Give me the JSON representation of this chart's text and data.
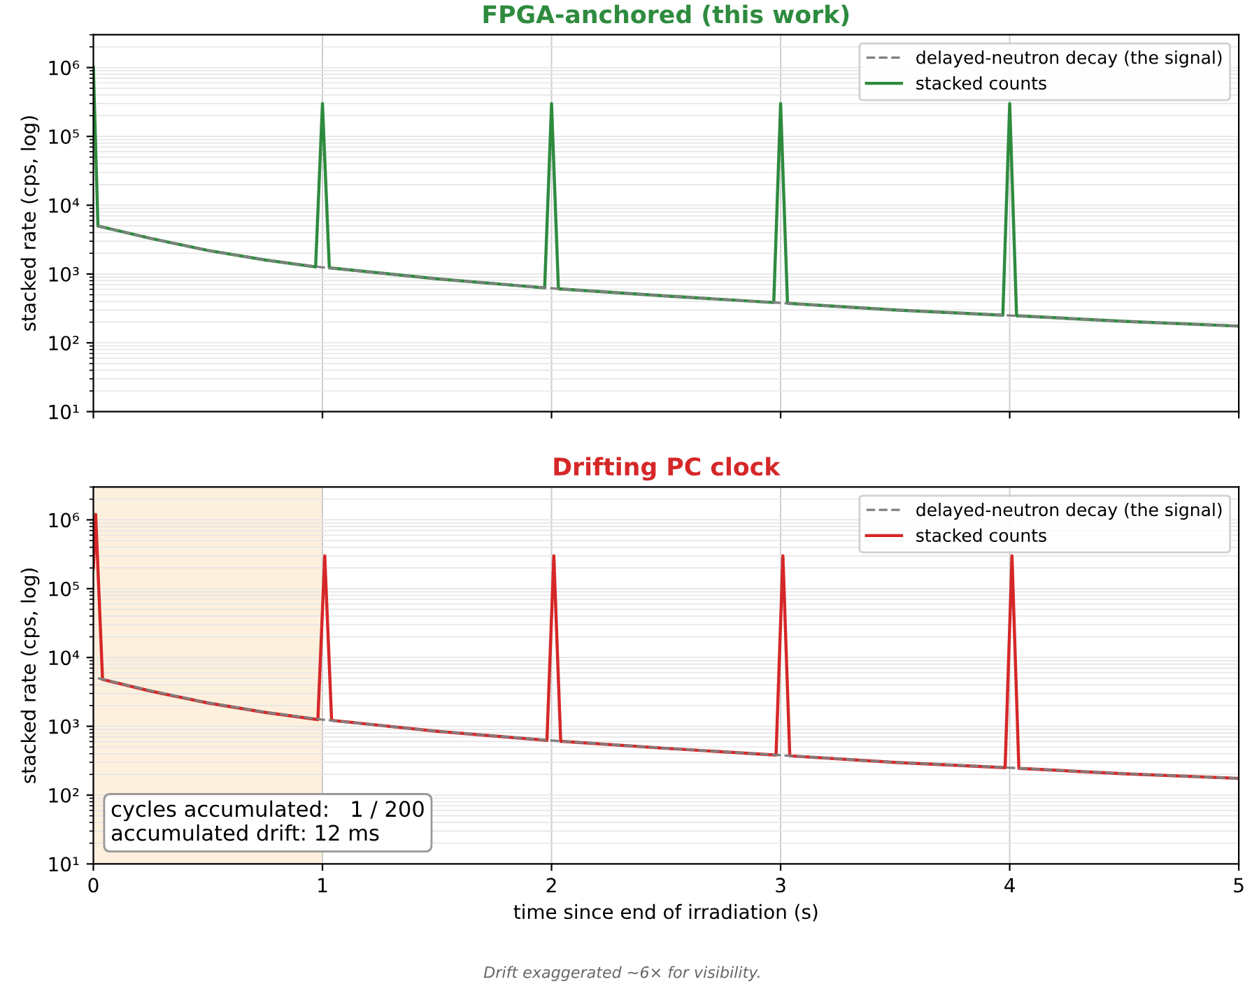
{
  "chart_data": [
    {
      "type": "line",
      "title": "FPGA-anchored (this work)",
      "ylabel": "stacked rate (cps, log)",
      "log": "y",
      "xlim": [
        0,
        5
      ],
      "xticks": [
        0,
        1,
        2,
        3,
        4,
        5
      ],
      "ylim": [
        10,
        3000000
      ],
      "yticks": [
        {
          "value": 10,
          "label": "10¹"
        },
        {
          "value": 100,
          "label": "10²"
        },
        {
          "value": 1000,
          "label": "10³"
        },
        {
          "value": 10000,
          "label": "10⁴"
        },
        {
          "value": 100000,
          "label": "10⁵"
        },
        {
          "value": 1000000,
          "label": "10⁶"
        }
      ],
      "tick_labels": "y",
      "grid": true,
      "legend": "top right",
      "line_style": "solid",
      "marker": "none",
      "series": [
        {
          "name": "delayed-neutron decay (the signal)",
          "color": "#808080",
          "line_style": "dashed",
          "x": [
            0.02,
            0.25,
            0.5,
            0.75,
            1,
            1.5,
            2,
            2.5,
            3,
            3.5,
            4,
            4.5,
            5
          ],
          "values": [
            5000,
            3300,
            2200,
            1600,
            1250,
            850,
            620,
            480,
            380,
            300,
            250,
            205,
            175
          ]
        },
        {
          "name": "stacked counts",
          "color": "#2e8b3e",
          "x": [
            0,
            0.02,
            0.25,
            0.5,
            0.75,
            0.97,
            1.0,
            1.03,
            1.5,
            1.97,
            2.0,
            2.03,
            2.5,
            2.97,
            3.0,
            3.03,
            3.5,
            3.97,
            4.0,
            4.03,
            4.5,
            5
          ],
          "values": [
            1000000,
            5000,
            3300,
            2200,
            1600,
            1270,
            300000,
            1230,
            850,
            630,
            300000,
            610,
            480,
            385,
            300000,
            375,
            300,
            252,
            300000,
            248,
            205,
            175
          ]
        }
      ]
    },
    {
      "type": "line",
      "title": "Drifting PC clock",
      "xlabel": "time since end of irradiation (s)",
      "ylabel": "stacked rate (cps, log)",
      "log": "y",
      "xlim": [
        0,
        5
      ],
      "xticks": [
        0,
        1,
        2,
        3,
        4,
        5
      ],
      "ylim": [
        10,
        3000000
      ],
      "yticks": [
        {
          "value": 10,
          "label": "10¹"
        },
        {
          "value": 100,
          "label": "10²"
        },
        {
          "value": 1000,
          "label": "10³"
        },
        {
          "value": 10000,
          "label": "10⁴"
        },
        {
          "value": 100000,
          "label": "10⁵"
        },
        {
          "value": 1000000,
          "label": "10⁶"
        }
      ],
      "grid": true,
      "legend": "top right",
      "line_style": "solid",
      "marker": "none",
      "bands": [
        {
          "axis": "x",
          "from": 0,
          "to": 1,
          "color": "#fdf0dc"
        }
      ],
      "annotations": [
        "cycles accumulated:   1 / 200\naccumulated drift: 12 ms",
        "Drift exaggerated ~6× for visibility."
      ],
      "series": [
        {
          "name": "delayed-neutron decay (the signal)",
          "color": "#808080",
          "line_style": "dashed",
          "x": [
            0.02,
            0.25,
            0.5,
            0.75,
            1,
            1.5,
            2,
            2.5,
            3,
            3.5,
            4,
            4.5,
            5
          ],
          "values": [
            5000,
            3300,
            2200,
            1600,
            1250,
            850,
            620,
            480,
            380,
            300,
            250,
            205,
            175
          ]
        },
        {
          "name": "stacked counts",
          "color": "#d62728",
          "x": [
            0,
            0.01,
            0.04,
            0.25,
            0.5,
            0.75,
            0.98,
            1.01,
            1.04,
            1.5,
            1.98,
            2.01,
            2.04,
            2.5,
            2.98,
            3.01,
            3.04,
            3.5,
            3.98,
            4.01,
            4.04,
            4.5,
            5
          ],
          "values": [
            200000,
            1200000,
            4800,
            3250,
            2180,
            1590,
            1250,
            300000,
            1220,
            845,
            625,
            300000,
            605,
            478,
            382,
            300000,
            372,
            298,
            250,
            300000,
            245,
            204,
            175
          ]
        }
      ]
    }
  ]
}
